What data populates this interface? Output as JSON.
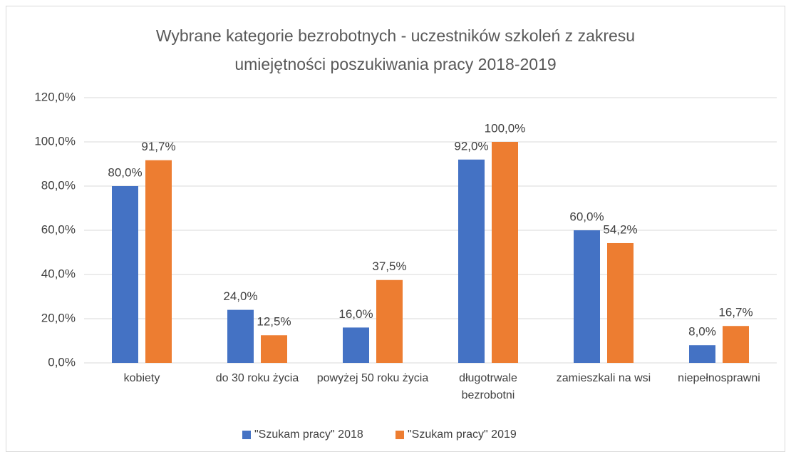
{
  "chart_data": {
    "type": "bar",
    "title": "Wybrane kategorie bezrobotnych - uczestników szkoleń z zakresu umiejętności poszukiwania pracy 2018-2019",
    "categories": [
      "kobiety",
      "do 30 roku życia",
      "powyżej 50 roku życia",
      "długotrwale bezrobotni",
      "zamieszkali na wsi",
      "niepełnosprawni"
    ],
    "series": [
      {
        "name": "\"Szukam pracy\" 2018",
        "color": "#4472c4",
        "values": [
          80,
          24,
          16,
          92,
          60,
          8
        ],
        "value_labels": [
          "80,0%",
          "24,0%",
          "16,0%",
          "92,0%",
          "60,0%",
          "8,0%"
        ]
      },
      {
        "name": "\"Szukam pracy\" 2019",
        "color": "#ed7d31",
        "values": [
          91.7,
          12.5,
          37.5,
          100,
          54.2,
          16.7
        ],
        "value_labels": [
          "91,7%",
          "12,5%",
          "37,5%",
          "100,0%",
          "54,2%",
          "16,7%"
        ]
      }
    ],
    "ylim": [
      0,
      120
    ],
    "yticks": [
      {
        "value": 0,
        "label": "0,0%"
      },
      {
        "value": 20,
        "label": "20,0%"
      },
      {
        "value": 40,
        "label": "40,0%"
      },
      {
        "value": 60,
        "label": "60,0%"
      },
      {
        "value": 80,
        "label": "80,0%"
      },
      {
        "value": 100,
        "label": "100,0%"
      },
      {
        "value": 120,
        "label": "120,0%"
      }
    ],
    "grid": true,
    "legend": "bottom"
  }
}
